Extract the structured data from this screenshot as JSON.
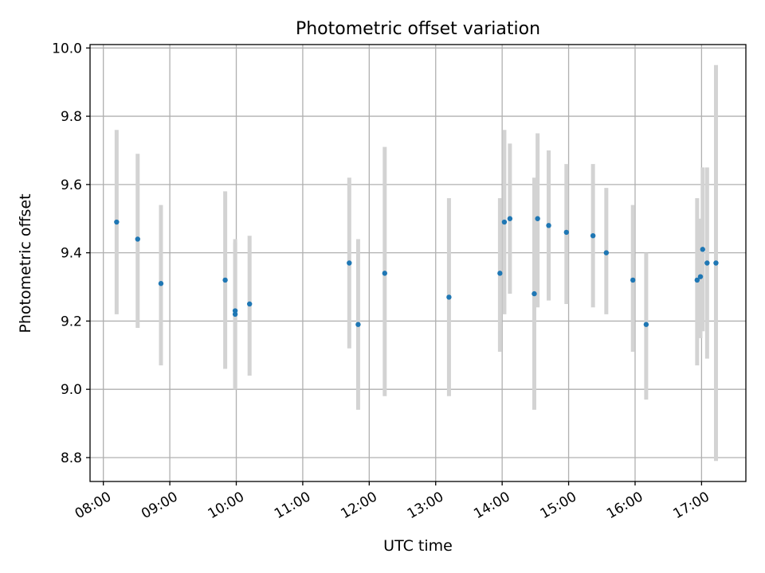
{
  "chart_data": {
    "type": "scatter",
    "title": "Photometric offset variation",
    "xlabel": "UTC time",
    "ylabel": "Photometric offset",
    "xlim": [
      "07:48",
      "17:40"
    ],
    "ylim": [
      8.73,
      10.01
    ],
    "grid": true,
    "legend": "none",
    "yticks": [
      "8.8",
      "9.0",
      "9.2",
      "9.4",
      "9.6",
      "9.8",
      "10.0"
    ],
    "xticks": [
      "08:00",
      "09:00",
      "10:00",
      "11:00",
      "12:00",
      "13:00",
      "14:00",
      "15:00",
      "16:00",
      "17:00"
    ],
    "colors": {
      "point": "#1f77b4",
      "errorbar": "#d3d3d3",
      "grid": "#b0b0b0"
    },
    "series": [
      {
        "points": [
          {
            "x": "08:12",
            "y": 9.49,
            "ylow": 9.22,
            "yhigh": 9.76
          },
          {
            "x": "08:31",
            "y": 9.44,
            "ylow": 9.18,
            "yhigh": 9.69
          },
          {
            "x": "08:52",
            "y": 9.31,
            "ylow": 9.07,
            "yhigh": 9.54
          },
          {
            "x": "09:50",
            "y": 9.32,
            "ylow": 9.06,
            "yhigh": 9.58
          },
          {
            "x": "09:59",
            "y": 9.23,
            "ylow": 9.0,
            "yhigh": 9.44
          },
          {
            "x": "09:59",
            "y": 9.22,
            "ylow": 9.0,
            "yhigh": 9.43
          },
          {
            "x": "10:12",
            "y": 9.25,
            "ylow": 9.04,
            "yhigh": 9.45
          },
          {
            "x": "11:42",
            "y": 9.37,
            "ylow": 9.12,
            "yhigh": 9.62
          },
          {
            "x": "11:50",
            "y": 9.19,
            "ylow": 8.94,
            "yhigh": 9.44
          },
          {
            "x": "12:14",
            "y": 9.34,
            "ylow": 8.98,
            "yhigh": 9.71
          },
          {
            "x": "13:12",
            "y": 9.27,
            "ylow": 8.98,
            "yhigh": 9.56
          },
          {
            "x": "13:58",
            "y": 9.34,
            "ylow": 9.11,
            "yhigh": 9.56
          },
          {
            "x": "14:02",
            "y": 9.49,
            "ylow": 9.22,
            "yhigh": 9.76
          },
          {
            "x": "14:07",
            "y": 9.5,
            "ylow": 9.28,
            "yhigh": 9.72
          },
          {
            "x": "14:29",
            "y": 9.28,
            "ylow": 8.94,
            "yhigh": 9.62
          },
          {
            "x": "14:32",
            "y": 9.5,
            "ylow": 9.24,
            "yhigh": 9.75
          },
          {
            "x": "14:42",
            "y": 9.48,
            "ylow": 9.26,
            "yhigh": 9.7
          },
          {
            "x": "14:58",
            "y": 9.46,
            "ylow": 9.25,
            "yhigh": 9.66
          },
          {
            "x": "15:22",
            "y": 9.45,
            "ylow": 9.24,
            "yhigh": 9.66
          },
          {
            "x": "15:34",
            "y": 9.4,
            "ylow": 9.22,
            "yhigh": 9.59
          },
          {
            "x": "15:58",
            "y": 9.32,
            "ylow": 9.11,
            "yhigh": 9.54
          },
          {
            "x": "16:10",
            "y": 9.19,
            "ylow": 8.97,
            "yhigh": 9.4
          },
          {
            "x": "16:56",
            "y": 9.32,
            "ylow": 9.07,
            "yhigh": 9.56
          },
          {
            "x": "16:59",
            "y": 9.33,
            "ylow": 9.15,
            "yhigh": 9.5
          },
          {
            "x": "17:01",
            "y": 9.41,
            "ylow": 9.17,
            "yhigh": 9.65
          },
          {
            "x": "17:05",
            "y": 9.37,
            "ylow": 9.09,
            "yhigh": 9.65
          },
          {
            "x": "17:13",
            "y": 9.37,
            "ylow": 8.79,
            "yhigh": 9.95
          }
        ]
      }
    ]
  }
}
